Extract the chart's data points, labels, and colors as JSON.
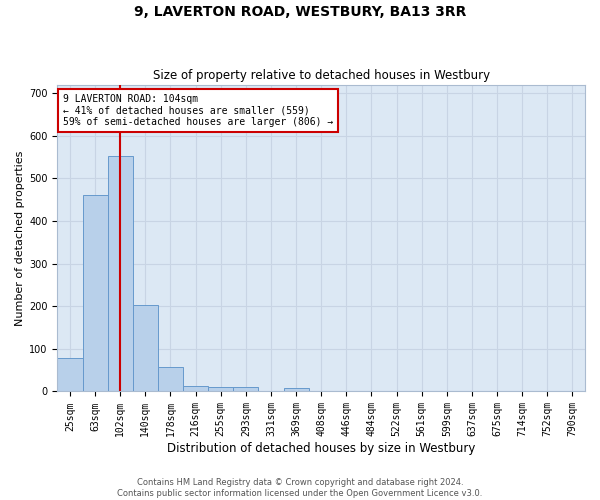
{
  "title": "9, LAVERTON ROAD, WESTBURY, BA13 3RR",
  "subtitle": "Size of property relative to detached houses in Westbury",
  "xlabel": "Distribution of detached houses by size in Westbury",
  "ylabel": "Number of detached properties",
  "bar_categories": [
    "25sqm",
    "63sqm",
    "102sqm",
    "140sqm",
    "178sqm",
    "216sqm",
    "255sqm",
    "293sqm",
    "331sqm",
    "369sqm",
    "408sqm",
    "446sqm",
    "484sqm",
    "522sqm",
    "561sqm",
    "599sqm",
    "637sqm",
    "675sqm",
    "714sqm",
    "752sqm",
    "790sqm"
  ],
  "bar_values": [
    78,
    462,
    553,
    204,
    57,
    14,
    10,
    10,
    0,
    8,
    0,
    0,
    0,
    0,
    0,
    0,
    0,
    0,
    0,
    0,
    0
  ],
  "bar_color": "#b8d0ea",
  "bar_edge_color": "#6699cc",
  "vline_x_index": 2,
  "vline_color": "#cc0000",
  "annotation_line1": "9 LAVERTON ROAD: 104sqm",
  "annotation_line2": "← 41% of detached houses are smaller (559)",
  "annotation_line3": "59% of semi-detached houses are larger (806) →",
  "annotation_box_facecolor": "#ffffff",
  "annotation_box_edgecolor": "#cc0000",
  "ylim": [
    0,
    720
  ],
  "yticks": [
    0,
    100,
    200,
    300,
    400,
    500,
    600,
    700
  ],
  "grid_color": "#c8d4e4",
  "bg_color": "#dce8f4",
  "footer_line1": "Contains HM Land Registry data © Crown copyright and database right 2024.",
  "footer_line2": "Contains public sector information licensed under the Open Government Licence v3.0.",
  "title_fontsize": 10,
  "subtitle_fontsize": 8.5,
  "ylabel_fontsize": 8,
  "xlabel_fontsize": 8.5,
  "tick_fontsize": 7,
  "annotation_fontsize": 7,
  "footer_fontsize": 6
}
